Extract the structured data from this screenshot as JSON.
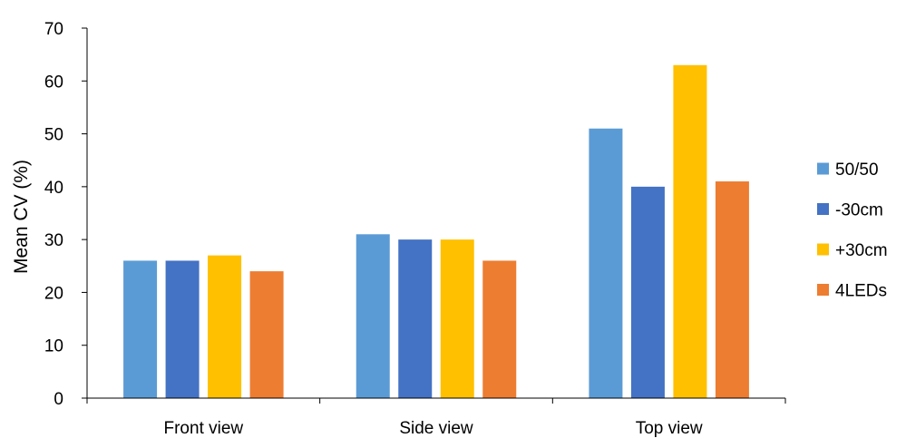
{
  "chart_data": {
    "type": "bar",
    "title": "",
    "xlabel": "",
    "ylabel": "Mean CV (%)",
    "ylim": [
      0,
      70
    ],
    "yticks": [
      0,
      10,
      20,
      30,
      40,
      50,
      60,
      70
    ],
    "grid": false,
    "legend_position": "right",
    "categories": [
      "Front view",
      "Side view",
      "Top view"
    ],
    "series": [
      {
        "name": "50/50",
        "color": "#5B9BD5",
        "values": [
          26,
          31,
          51
        ]
      },
      {
        "name": "-30cm",
        "color": "#4472C4",
        "values": [
          26,
          30,
          40
        ]
      },
      {
        "name": "+30cm",
        "color": "#FFC000",
        "values": [
          27,
          30,
          63
        ]
      },
      {
        "name": "4LEDs",
        "color": "#ED7D31",
        "values": [
          24,
          26,
          41
        ]
      }
    ]
  }
}
